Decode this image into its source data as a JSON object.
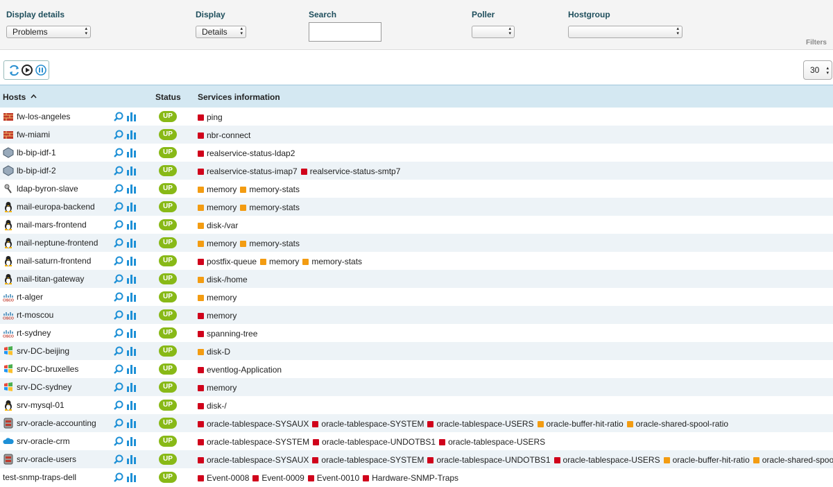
{
  "filters": {
    "display_details": {
      "label": "Display details",
      "value": "Problems"
    },
    "display": {
      "label": "Display",
      "value": "Details"
    },
    "search": {
      "label": "Search"
    },
    "poller": {
      "label": "Poller"
    },
    "hostgroup": {
      "label": "Hostgroup"
    },
    "tab": "Filters"
  },
  "pagination": {
    "per_page": 30
  },
  "table": {
    "headers": {
      "hosts": "Hosts",
      "status": "Status",
      "services": "Services information"
    },
    "rows": [
      {
        "host": "fw-los-angeles",
        "icon": "firewall",
        "status": "UP",
        "services": [
          {
            "name": "ping",
            "state": "critical"
          }
        ]
      },
      {
        "host": "fw-miami",
        "icon": "firewall",
        "status": "UP",
        "services": [
          {
            "name": "nbr-connect",
            "state": "critical"
          }
        ]
      },
      {
        "host": "lb-bip-idf-1",
        "icon": "loadbalancer",
        "status": "UP",
        "services": [
          {
            "name": "realservice-status-ldap2",
            "state": "critical"
          }
        ]
      },
      {
        "host": "lb-bip-idf-2",
        "icon": "loadbalancer",
        "status": "UP",
        "services": [
          {
            "name": "realservice-status-imap7",
            "state": "critical"
          },
          {
            "name": "realservice-status-smtp7",
            "state": "critical"
          }
        ]
      },
      {
        "host": "ldap-byron-slave",
        "icon": "ldap",
        "status": "UP",
        "services": [
          {
            "name": "memory",
            "state": "warning"
          },
          {
            "name": "memory-stats",
            "state": "warning"
          }
        ]
      },
      {
        "host": "mail-europa-backend",
        "icon": "linux",
        "status": "UP",
        "services": [
          {
            "name": "memory",
            "state": "warning"
          },
          {
            "name": "memory-stats",
            "state": "warning"
          }
        ]
      },
      {
        "host": "mail-mars-frontend",
        "icon": "linux",
        "status": "UP",
        "services": [
          {
            "name": "disk-/var",
            "state": "warning"
          }
        ]
      },
      {
        "host": "mail-neptune-frontend",
        "icon": "linux",
        "status": "UP",
        "services": [
          {
            "name": "memory",
            "state": "warning"
          },
          {
            "name": "memory-stats",
            "state": "warning"
          }
        ]
      },
      {
        "host": "mail-saturn-frontend",
        "icon": "linux",
        "status": "UP",
        "services": [
          {
            "name": "postfix-queue",
            "state": "critical"
          },
          {
            "name": "memory",
            "state": "warning"
          },
          {
            "name": "memory-stats",
            "state": "warning"
          }
        ]
      },
      {
        "host": "mail-titan-gateway",
        "icon": "linux",
        "status": "UP",
        "services": [
          {
            "name": "disk-/home",
            "state": "warning"
          }
        ]
      },
      {
        "host": "rt-alger",
        "icon": "cisco",
        "status": "UP",
        "services": [
          {
            "name": "memory",
            "state": "warning"
          }
        ]
      },
      {
        "host": "rt-moscou",
        "icon": "cisco",
        "status": "UP",
        "services": [
          {
            "name": "memory",
            "state": "critical"
          }
        ]
      },
      {
        "host": "rt-sydney",
        "icon": "cisco",
        "status": "UP",
        "services": [
          {
            "name": "spanning-tree",
            "state": "critical"
          }
        ]
      },
      {
        "host": "srv-DC-beijing",
        "icon": "windows",
        "status": "UP",
        "services": [
          {
            "name": "disk-D",
            "state": "warning"
          }
        ]
      },
      {
        "host": "srv-DC-bruxelles",
        "icon": "windows",
        "status": "UP",
        "services": [
          {
            "name": "eventlog-Application",
            "state": "critical"
          }
        ]
      },
      {
        "host": "srv-DC-sydney",
        "icon": "windows",
        "status": "UP",
        "services": [
          {
            "name": "memory",
            "state": "critical"
          }
        ]
      },
      {
        "host": "srv-mysql-01",
        "icon": "linux",
        "status": "UP",
        "services": [
          {
            "name": "disk-/",
            "state": "critical"
          }
        ]
      },
      {
        "host": "srv-oracle-accounting",
        "icon": "oracle",
        "status": "UP",
        "services": [
          {
            "name": "oracle-tablespace-SYSAUX",
            "state": "critical"
          },
          {
            "name": "oracle-tablespace-SYSTEM",
            "state": "critical"
          },
          {
            "name": "oracle-tablespace-USERS",
            "state": "critical"
          },
          {
            "name": "oracle-buffer-hit-ratio",
            "state": "warning"
          },
          {
            "name": "oracle-shared-spool-ratio",
            "state": "warning"
          }
        ]
      },
      {
        "host": "srv-oracle-crm",
        "icon": "cloud",
        "status": "UP",
        "services": [
          {
            "name": "oracle-tablespace-SYSTEM",
            "state": "critical"
          },
          {
            "name": "oracle-tablespace-UNDOTBS1",
            "state": "critical"
          },
          {
            "name": "oracle-tablespace-USERS",
            "state": "critical"
          }
        ]
      },
      {
        "host": "srv-oracle-users",
        "icon": "oracle",
        "status": "UP",
        "services": [
          {
            "name": "oracle-tablespace-SYSAUX",
            "state": "critical"
          },
          {
            "name": "oracle-tablespace-SYSTEM",
            "state": "critical"
          },
          {
            "name": "oracle-tablespace-UNDOTBS1",
            "state": "critical"
          },
          {
            "name": "oracle-tablespace-USERS",
            "state": "critical"
          },
          {
            "name": "oracle-buffer-hit-ratio",
            "state": "warning"
          },
          {
            "name": "oracle-shared-spool-ratio",
            "state": "warning"
          }
        ]
      },
      {
        "host": "test-snmp-traps-dell",
        "icon": "none",
        "status": "UP",
        "services": [
          {
            "name": "Event-0008",
            "state": "critical"
          },
          {
            "name": "Event-0009",
            "state": "critical"
          },
          {
            "name": "Event-0010",
            "state": "critical"
          },
          {
            "name": "Hardware-SNMP-Traps",
            "state": "critical"
          }
        ]
      }
    ]
  }
}
